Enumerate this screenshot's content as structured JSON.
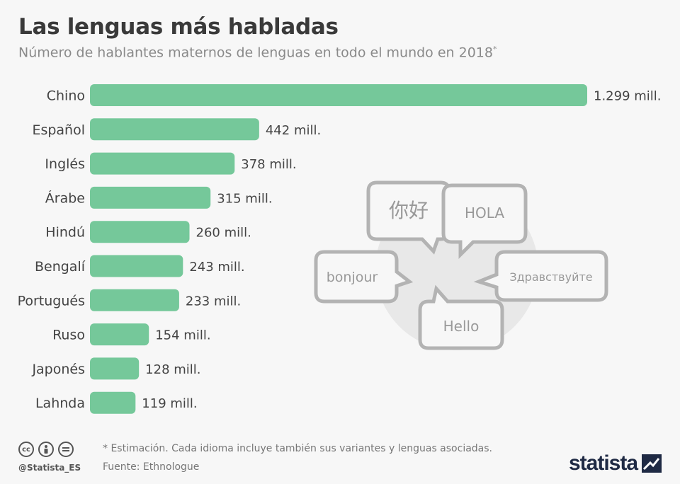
{
  "title": "Las lenguas más habladas",
  "subtitle": "Número de hablantes maternos de lenguas en todo el mundo en 2018",
  "subtitle_mark": "*",
  "chart_data": {
    "type": "bar",
    "orientation": "horizontal",
    "categories": [
      "Chino",
      "Español",
      "Inglés",
      "Árabe",
      "Hindú",
      "Bengalí",
      "Portugués",
      "Ruso",
      "Japonés",
      "Lahnda"
    ],
    "values": [
      1299,
      442,
      378,
      315,
      260,
      243,
      233,
      154,
      128,
      119
    ],
    "value_labels": [
      "1.299 mill.",
      "442 mill.",
      "378 mill.",
      "315 mill.",
      "260 mill.",
      "243 mill.",
      "233 mill.",
      "154 mill.",
      "128 mill.",
      "119 mill."
    ],
    "bar_color": "#75c89a",
    "legend": "none",
    "grid": false
  },
  "illustration": {
    "bubbles": [
      "你好",
      "HOLA",
      "bonjour",
      "Здравствуйте",
      "Hello"
    ],
    "stroke_color": "#b3b3b3",
    "circle_color": "#e8e8e8"
  },
  "footer": {
    "icons": [
      "cc",
      "by",
      "nd"
    ],
    "handle": "@Statista_ES",
    "note": "* Estimación. Cada idioma incluye también sus variantes y lenguas asociadas.",
    "source": "Fuente: Ethnologue",
    "brand": "statista"
  }
}
